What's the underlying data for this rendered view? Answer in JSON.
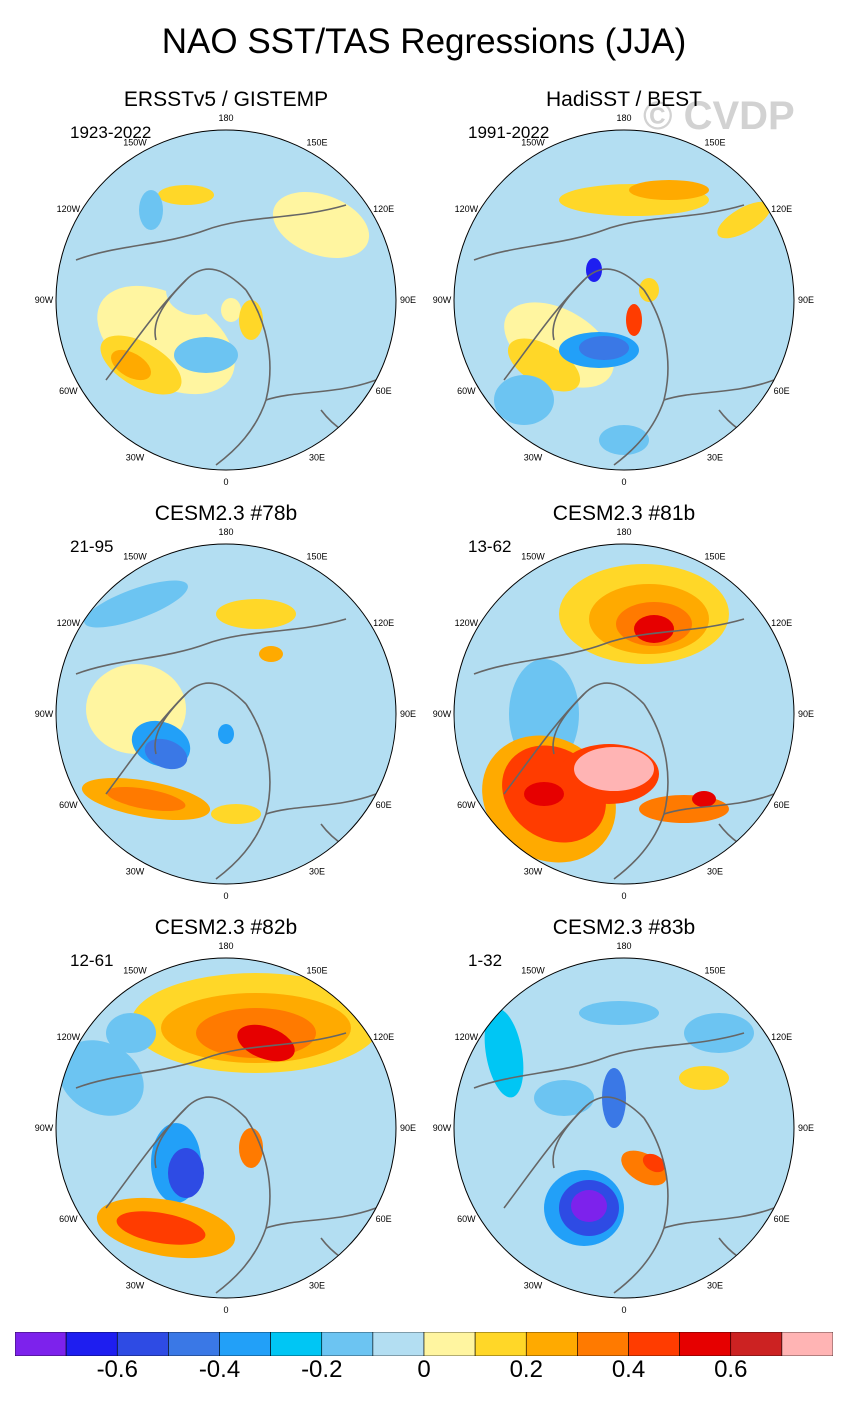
{
  "title": "NAO SST/TAS Regressions (JJA)",
  "watermark": "© CVDP",
  "longitude_labels": [
    "180",
    "150E",
    "120E",
    "90E",
    "60E",
    "30E",
    "0",
    "30W",
    "60W",
    "90W",
    "120W",
    "150W"
  ],
  "panels": [
    {
      "title": "ERSSTv5 / GISTEMP",
      "period": "1923-2022",
      "pattern": "obs1"
    },
    {
      "title": "HadiSST / BEST",
      "period": "1991-2022",
      "pattern": "obs2"
    },
    {
      "title": "CESM2.3 #78b",
      "period": "21-95",
      "pattern": "m78"
    },
    {
      "title": "CESM2.3 #81b",
      "period": "13-62",
      "pattern": "m81"
    },
    {
      "title": "CESM2.3 #82b",
      "period": "12-61",
      "pattern": "m82"
    },
    {
      "title": "CESM2.3 #83b",
      "period": "1-32",
      "pattern": "m83"
    }
  ],
  "colorbar": {
    "colors": [
      "#7d22ec",
      "#1e1ef0",
      "#2e4be4",
      "#3a78e6",
      "#22a0f8",
      "#00c6f4",
      "#6cc4f2",
      "#b3def2",
      "#fff5a0",
      "#ffd728",
      "#ffaa00",
      "#ff7a00",
      "#ff3c00",
      "#e60000",
      "#cc2222",
      "#ffb4b4"
    ],
    "labels": [
      "-0.6",
      "-0.4",
      "-0.2",
      "0",
      "0.2",
      "0.4",
      "0.6"
    ]
  },
  "colors": {
    "land_outline": "#666666",
    "high": "#cc2222",
    "low": "#7d22ec"
  }
}
